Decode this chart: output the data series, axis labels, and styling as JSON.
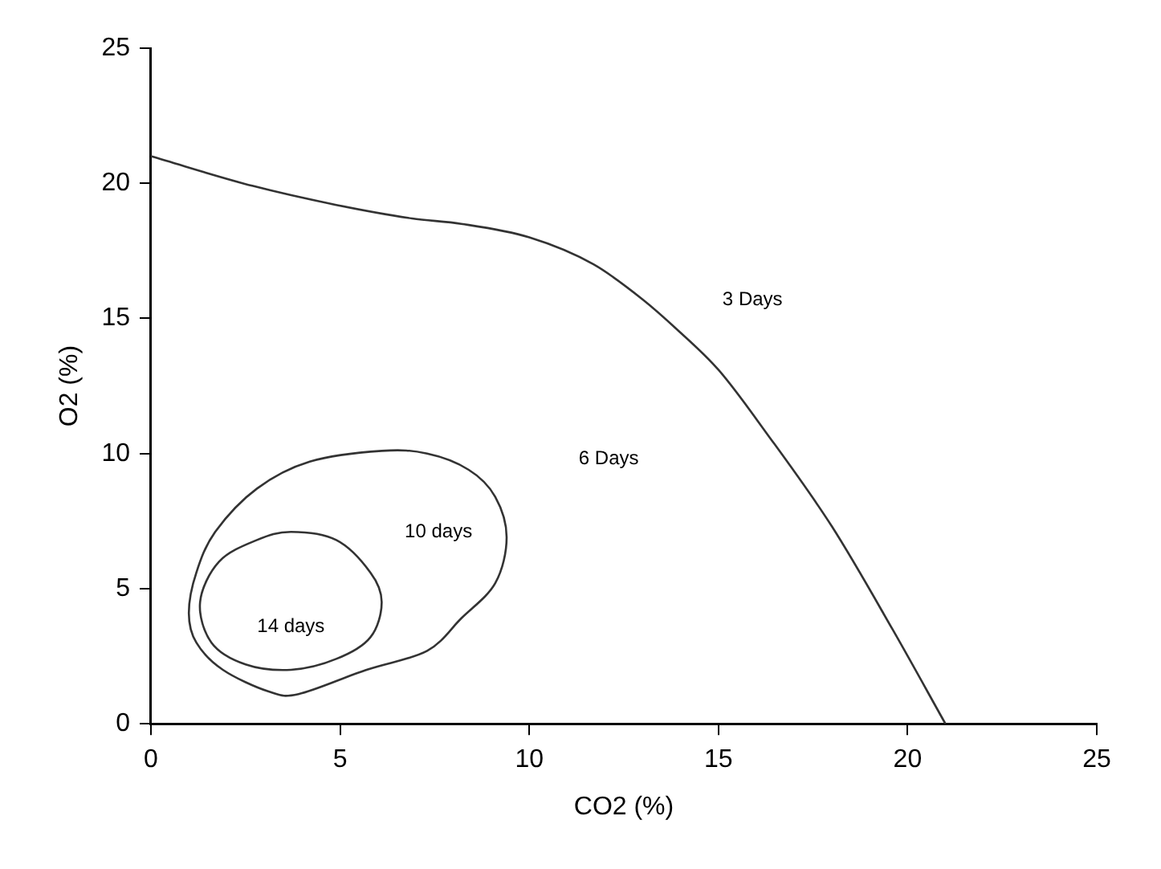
{
  "chart_data": {
    "type": "line",
    "xlabel": "CO2 (%)",
    "ylabel": "O2 (%)",
    "xlim": [
      0,
      25
    ],
    "xticks": [
      0,
      5,
      10,
      15,
      20,
      25
    ],
    "ylim": [
      0,
      25
    ],
    "yticks": [
      0,
      5,
      10,
      15,
      20,
      25
    ],
    "grid": false,
    "legend": false,
    "marker": "none",
    "line_style": "solid",
    "series": [
      {
        "color": "#333333",
        "x": [
          0,
          2.7,
          4.9,
          6.9,
          8.2,
          10.0,
          11.7,
          13.0,
          13.9,
          15.0,
          16.3,
          18.0,
          19.6,
          21.0
        ],
        "values": [
          21.0,
          19.9,
          19.2,
          18.7,
          18.5,
          18.0,
          17.0,
          15.7,
          14.6,
          13.1,
          10.7,
          7.3,
          3.5,
          0
        ]
      }
    ],
    "annotations": [
      "3 Days",
      "6 Days",
      "10 days",
      "14 days"
    ]
  }
}
